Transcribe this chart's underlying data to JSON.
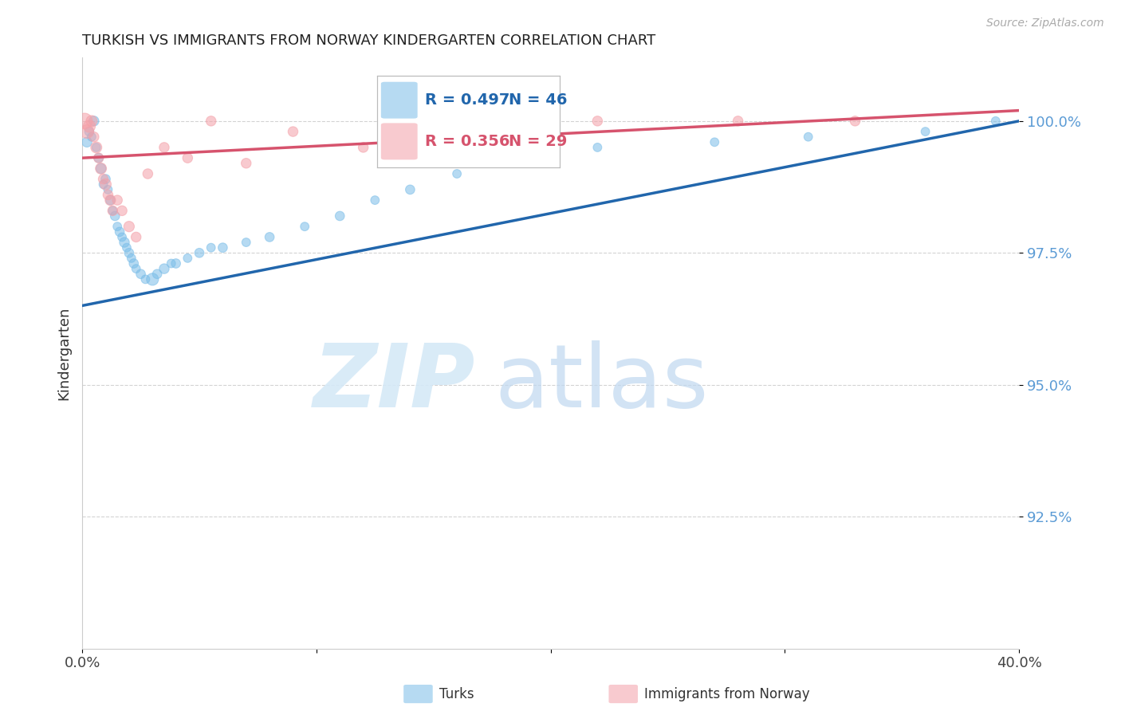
{
  "title": "TURKISH VS IMMIGRANTS FROM NORWAY KINDERGARTEN CORRELATION CHART",
  "source": "Source: ZipAtlas.com",
  "ylabel": "Kindergarten",
  "xlim": [
    0.0,
    40.0
  ],
  "ylim": [
    90.0,
    101.2
  ],
  "yticks": [
    92.5,
    95.0,
    97.5,
    100.0
  ],
  "ytick_labels": [
    "92.5%",
    "95.0%",
    "97.5%",
    "100.0%"
  ],
  "xticks": [
    0.0,
    10.0,
    20.0,
    30.0,
    40.0
  ],
  "xtick_labels": [
    "0.0%",
    "",
    "",
    "",
    "40.0%"
  ],
  "legend_blue_r": "R = 0.497",
  "legend_blue_n": "N = 46",
  "legend_pink_r": "R = 0.356",
  "legend_pink_n": "N = 29",
  "blue_color": "#7abde8",
  "pink_color": "#f4a0a8",
  "blue_line_color": "#2166ac",
  "pink_line_color": "#d6536d",
  "blue_points_x": [
    0.2,
    0.3,
    0.4,
    0.5,
    0.6,
    0.7,
    0.8,
    0.9,
    1.0,
    1.1,
    1.2,
    1.3,
    1.4,
    1.5,
    1.6,
    1.7,
    1.8,
    1.9,
    2.0,
    2.1,
    2.2,
    2.3,
    2.5,
    2.7,
    3.0,
    3.2,
    3.5,
    3.8,
    4.0,
    4.5,
    5.0,
    5.5,
    6.0,
    7.0,
    8.0,
    9.5,
    11.0,
    12.5,
    14.0,
    16.0,
    18.0,
    22.0,
    27.0,
    31.0,
    36.0,
    39.0
  ],
  "blue_points_y": [
    99.6,
    99.8,
    99.7,
    100.0,
    99.5,
    99.3,
    99.1,
    98.8,
    98.9,
    98.7,
    98.5,
    98.3,
    98.2,
    98.0,
    97.9,
    97.8,
    97.7,
    97.6,
    97.5,
    97.4,
    97.3,
    97.2,
    97.1,
    97.0,
    97.0,
    97.1,
    97.2,
    97.3,
    97.3,
    97.4,
    97.5,
    97.6,
    97.6,
    97.7,
    97.8,
    98.0,
    98.2,
    98.5,
    98.7,
    99.0,
    99.2,
    99.5,
    99.6,
    99.7,
    99.8,
    100.0
  ],
  "blue_sizes": [
    80,
    70,
    60,
    80,
    60,
    70,
    80,
    60,
    70,
    60,
    70,
    60,
    70,
    60,
    70,
    60,
    80,
    60,
    70,
    60,
    70,
    60,
    70,
    60,
    120,
    70,
    80,
    60,
    70,
    60,
    70,
    60,
    70,
    60,
    70,
    60,
    70,
    60,
    70,
    60,
    60,
    60,
    60,
    60,
    60,
    60
  ],
  "pink_points_x": [
    0.1,
    0.2,
    0.3,
    0.4,
    0.5,
    0.6,
    0.7,
    0.8,
    0.9,
    1.0,
    1.1,
    1.2,
    1.3,
    1.5,
    1.7,
    2.0,
    2.3,
    2.8,
    3.5,
    4.5,
    5.5,
    7.0,
    9.0,
    12.0,
    15.0,
    18.0,
    22.0,
    28.0,
    33.0
  ],
  "pink_points_y": [
    100.0,
    99.8,
    99.9,
    100.0,
    99.7,
    99.5,
    99.3,
    99.1,
    98.9,
    98.8,
    98.6,
    98.5,
    98.3,
    98.5,
    98.3,
    98.0,
    97.8,
    99.0,
    99.5,
    99.3,
    100.0,
    99.2,
    99.8,
    99.5,
    100.0,
    100.0,
    100.0,
    100.0,
    100.0
  ],
  "pink_sizes": [
    200,
    150,
    120,
    100,
    80,
    100,
    80,
    100,
    80,
    100,
    80,
    90,
    80,
    80,
    80,
    90,
    80,
    80,
    80,
    80,
    80,
    80,
    80,
    80,
    80,
    80,
    80,
    80,
    80
  ],
  "background_color": "#ffffff",
  "grid_color": "#c8c8c8",
  "watermark_zip_color": "#d5e9f7",
  "watermark_atlas_color": "#c0d8f0"
}
